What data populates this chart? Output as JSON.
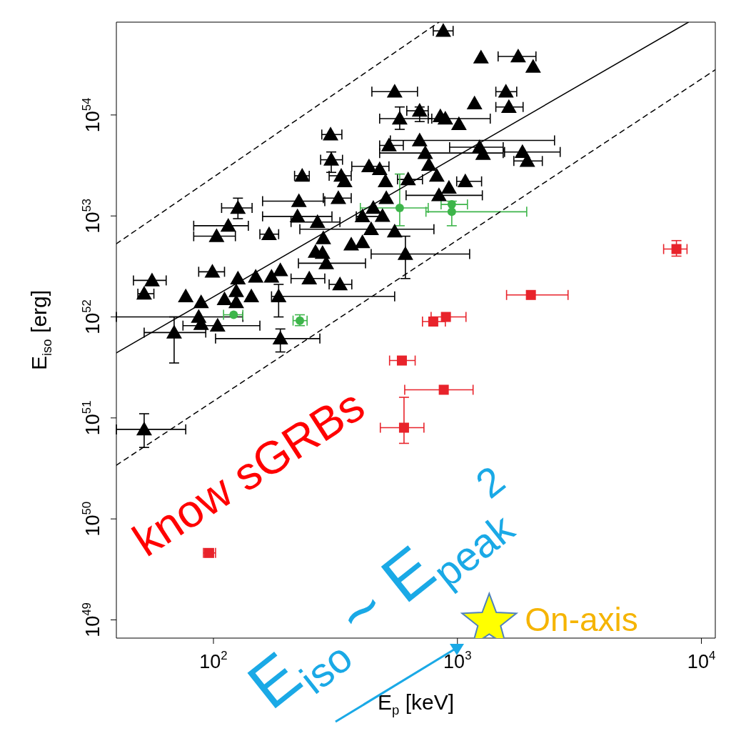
{
  "chart_data": {
    "type": "scatter",
    "xlabel": "E$_{p}$ [keV]",
    "ylabel": "E$_{iso}$ [erg]",
    "log": "xy",
    "xlim": [
      40,
      11400
    ],
    "ylim": [
      6.6e+48,
      8.3e+54
    ],
    "xticks": [
      {
        "value": 100,
        "label": "10$^{2}$"
      },
      {
        "value": 1000,
        "label": "10$^{3}$"
      },
      {
        "value": 10000,
        "label": "10$^{4}$"
      }
    ],
    "yticks": [
      {
        "value": 1e+49,
        "label": "10$^{49}$"
      },
      {
        "value": 1e+50,
        "label": "10$^{50}$"
      },
      {
        "value": 1e+51,
        "label": "10$^{51}$"
      },
      {
        "value": 1e+52,
        "label": "10$^{52}$"
      },
      {
        "value": 1e+53,
        "label": "10$^{53}$"
      },
      {
        "value": 1e+54,
        "label": "10$^{54}$"
      }
    ],
    "annotations": [
      "know sGRBs",
      "E$_{iso}$ ~ E$_{peak}$$^{2}$"
    ],
    "series": [
      {
        "marker": "triangle",
        "color": "#000000",
        "x": [
          553,
          580,
          302,
          524,
          304,
          231,
          434,
          480,
          334,
          345,
          507,
          628,
          325,
          224,
          126,
          115,
          103,
          169,
          221,
          267,
          408,
          493,
          443,
          553,
          408,
          367,
          282,
          262,
          280,
          290,
          612,
          56,
          52,
          99,
          126,
          149,
          173,
          188,
          247,
          330,
          77,
          89,
          111,
          124,
          124,
          143,
          185,
          87,
          89,
          104,
          69,
          188,
          52,
          875,
          1249,
          1774,
          2043,
          1580,
          1175,
          1625,
          700,
          851,
          892,
          1014,
          700,
          1233,
          1274,
          1847,
          1934,
          738,
          764,
          823,
          1077,
          923,
          840,
          511,
          452
        ],
        "values": [
          1.7e+54,
          9.2e+53,
          6.4e+53,
          5e+53,
          3.6e+53,
          2.5e+53,
          3.1e+53,
          2.9e+53,
          2.5e+53,
          2.2e+53,
          2.2e+53,
          2.3e+53,
          1.5e+53,
          1.4e+53,
          1.2e+53,
          8e+52,
          6.3e+52,
          6.6e+52,
          9.9e+52,
          8.7e+52,
          9.9e+52,
          1e+53,
          7.4e+52,
          7e+52,
          5.5e+52,
          5.2e+52,
          6e+52,
          4.4e+52,
          4.3e+52,
          3.4e+52,
          4.2e+52,
          2.3e+52,
          1.7e+52,
          2.8e+52,
          2.4e+52,
          2.5e+52,
          2.5e+52,
          2.9e+52,
          2.4e+52,
          2.1e+52,
          1.6e+52,
          1.4e+52,
          1.5e+52,
          1.4e+52,
          1.8e+52,
          1.6e+52,
          1.6e+52,
          1e+52,
          8.5e+51,
          8.2e+51,
          7e+51,
          6.1e+51,
          7.7e+50,
          6.8e+54,
          3.7e+54,
          3.8e+54,
          3e+54,
          1.7e+54,
          1.3e+54,
          1.2e+54,
          1.1e+54,
          9.7e+53,
          9.2e+53,
          8.1e+53,
          5.6e+53,
          4.8e+53,
          4.1e+53,
          4.3e+53,
          3.5e+53,
          4.2e+53,
          3.2e+53,
          2.5e+53,
          2.2e+53,
          1.9e+53,
          1.6e+53,
          1.5e+53,
          1.2e+53
        ],
        "xerrors": [
          [
            446,
            686
          ],
          [
            480,
            785
          ],
          [
            278,
            336
          ],
          [
            480,
            600
          ],
          [
            275,
            338
          ],
          [
            215,
            247
          ],
          [
            369,
            524
          ],
          null,
          [
            298,
            367
          ],
          null,
          null,
          [
            568,
            719
          ],
          [
            282,
            367
          ],
          [
            159,
            286
          ],
          [
            108,
            144
          ],
          [
            83,
            139
          ],
          [
            83,
            123
          ],
          [
            155,
            185
          ],
          [
            159,
            306
          ],
          [
            208,
            330
          ],
          [
            385,
            483
          ],
          null,
          [
            226,
            801
          ],
          null,
          null,
          null,
          null,
          null,
          null,
          [
            223,
            420
          ],
          [
            443,
            1122
          ],
          [
            47,
            64
          ],
          [
            49,
            57
          ],
          [
            87,
            111
          ],
          null,
          null,
          null,
          null,
          [
            208,
            286
          ],
          [
            298,
            369
          ],
          null,
          null,
          null,
          null,
          null,
          null,
          [
            173,
            553
          ],
          [
            40,
            132
          ],
          null,
          [
            75,
            155
          ],
          [
            52,
            93
          ],
          [
            102,
            273
          ],
          [
            40,
            77
          ],
          [
            796,
            960
          ],
          null,
          [
            1468,
            2098
          ],
          null,
          [
            1437,
            1750
          ],
          null,
          [
            1437,
            1858
          ],
          [
            620,
            759
          ],
          null,
          [
            759,
            1363
          ],
          null,
          [
            531,
            2500
          ],
          [
            929,
            1540
          ],
          null,
          [
            1560,
            2637
          ],
          [
            1703,
            2228
          ],
          [
            480,
            1540
          ],
          null,
          null,
          [
            993,
            1256
          ],
          null,
          [
            616,
            1265
          ],
          null,
          null
        ],
        "errors": [
          null,
          [
            7.2e+53,
            1.2e+54
          ],
          null,
          null,
          [
            2.7e+53,
            4.3e+53
          ],
          null,
          null,
          null,
          null,
          null,
          null,
          null,
          null,
          null,
          [
            9.4e+52,
            1.5e+53
          ],
          null,
          null,
          null,
          null,
          null,
          null,
          null,
          null,
          null,
          null,
          null,
          null,
          null,
          null,
          null,
          [
            2.4e+52,
            6.3e+52
          ],
          null,
          null,
          null,
          null,
          null,
          null,
          null,
          null,
          null,
          null,
          null,
          null,
          null,
          null,
          null,
          [
            1e+52,
            2.1e+52
          ],
          null,
          null,
          null,
          [
            3.5e+51,
            1e+52
          ],
          [
            4.5e+51,
            7.6e+51
          ],
          [
            5.1e+50,
            1.1e+51
          ],
          null,
          null,
          null,
          null,
          null,
          null,
          null,
          [
            8.6e+53,
            1.2e+54
          ],
          null,
          null,
          null,
          null,
          null,
          null,
          null,
          null,
          null,
          null,
          null,
          null,
          null,
          null,
          null,
          null
        ]
      },
      {
        "marker": "circle",
        "color": "#3db54a",
        "x": [
          580,
          948,
          948,
          121,
          226
        ],
        "values": [
          1.2e+53,
          1.3e+53,
          1.1e+53,
          1.05e+52,
          9.2e+51
        ],
        "xerrors": [
          [
            400,
            759
          ],
          [
            857,
            1099
          ],
          [
            743,
            1923
          ],
          [
            110,
            132
          ],
          [
            212,
            242
          ]
        ],
        "errors": [
          [
            8e+52,
            2.6e+53
          ],
          null,
          [
            8e+52,
            1.4e+53
          ],
          null,
          [
            8.2e+51,
            1.05e+52
          ]
        ]
      },
      {
        "marker": "square",
        "color": "#e8232b",
        "x": [
          96,
          7900,
          2000,
          796,
          897,
          592,
          879,
          604
        ],
        "values": [
          4.6e+49,
          4.7e+52,
          1.65e+52,
          9e+51,
          1e+52,
          3.7e+51,
          1.9e+51,
          8e+50
        ],
        "xerrors": [
          [
            91,
            102
          ],
          [
            7000,
            8730
          ],
          [
            1590,
            2840
          ],
          [
            719,
            892
          ],
          [
            780,
            1084
          ],
          [
            527,
            671
          ],
          [
            608,
            1159
          ],
          [
            483,
            729
          ]
        ],
        "errors": [
          null,
          [
            4e+52,
            5.7e+52
          ],
          null,
          null,
          null,
          null,
          null,
          [
            5.6e+50,
            1.6e+51
          ]
        ]
      },
      {
        "marker": "star",
        "name": "On-axis",
        "color": "#ffff00",
        "x": [
          1350
        ],
        "values": [
          9.5e+48
        ]
      },
      {
        "type": "line",
        "marker": "none",
        "line_style": "solid",
        "color": "#000000",
        "x": [
          40,
          8850
        ],
        "values": [
          4.4e+51,
          8.3e+54
        ]
      },
      {
        "type": "line",
        "marker": "none",
        "line_style": "dashed",
        "color": "#000000",
        "x": [
          40,
          840
        ],
        "values": [
          5.3e+52,
          8.3e+54
        ]
      },
      {
        "type": "line",
        "marker": "none",
        "line_style": "dashed",
        "color": "#000000",
        "x": [
          40,
          11400
        ],
        "values": [
          3.4e+50,
          2.8e+54
        ]
      }
    ]
  }
}
